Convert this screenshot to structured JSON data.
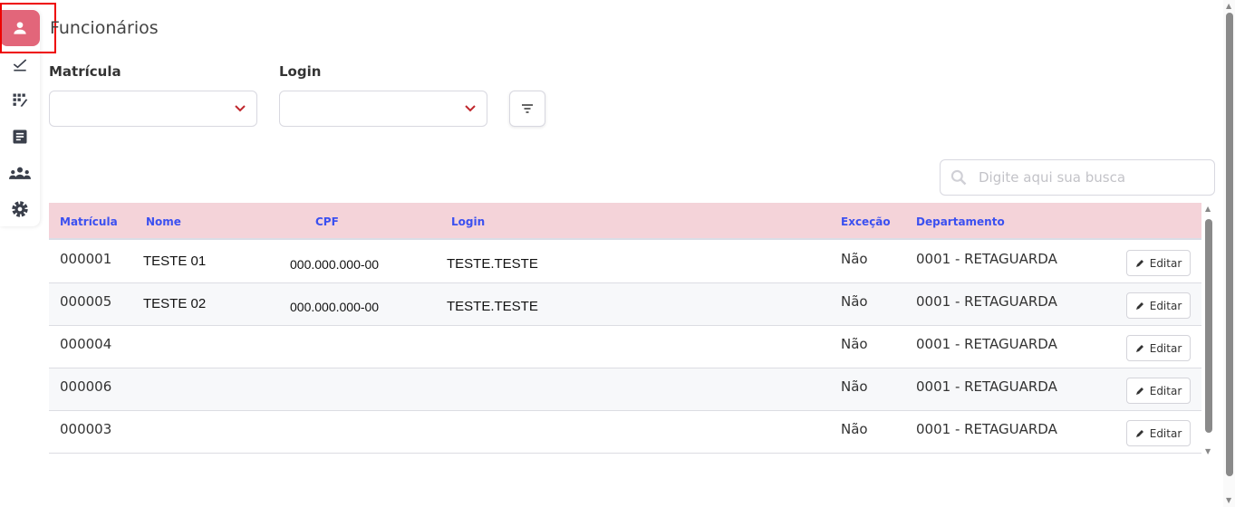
{
  "page": {
    "title": "Funcionários"
  },
  "sidebar": {
    "items": [
      {
        "icon": "user-icon",
        "active": true
      },
      {
        "icon": "check-icon"
      },
      {
        "icon": "grid-edit-icon"
      },
      {
        "icon": "document-icon"
      },
      {
        "icon": "group-icon"
      },
      {
        "icon": "gear-icon"
      }
    ],
    "accent": "#e2667a"
  },
  "filters": {
    "matricula_label": "Matrícula",
    "login_label": "Login",
    "matricula_value": "",
    "login_value": ""
  },
  "search": {
    "placeholder": "Digite aqui sua busca",
    "value": ""
  },
  "table": {
    "headers": [
      "Matrícula",
      "Nome",
      "CPF",
      "Login",
      "Exceção",
      "Departamento"
    ],
    "header_color": "#3b50f0",
    "header_bg": "#f4d3d9",
    "edit_label": "Editar",
    "rows": [
      {
        "matricula": "000001",
        "nome": "TESTE 01",
        "cpf": "000.000.000-00",
        "login": "TESTE.TESTE",
        "excecao": "Não",
        "departamento": "0001 - RETAGUARDA"
      },
      {
        "matricula": "000005",
        "nome": "TESTE 02",
        "cpf": "000.000.000-00",
        "login": "TESTE.TESTE",
        "excecao": "Não",
        "departamento": "0001 - RETAGUARDA"
      },
      {
        "matricula": "000004",
        "nome": "",
        "cpf": "",
        "login": "",
        "excecao": "Não",
        "departamento": "0001 - RETAGUARDA"
      },
      {
        "matricula": "000006",
        "nome": "",
        "cpf": "",
        "login": "",
        "excecao": "Não",
        "departamento": "0001 - RETAGUARDA"
      },
      {
        "matricula": "000003",
        "nome": "",
        "cpf": "",
        "login": "",
        "excecao": "Não",
        "departamento": "0001 - RETAGUARDA"
      }
    ]
  }
}
